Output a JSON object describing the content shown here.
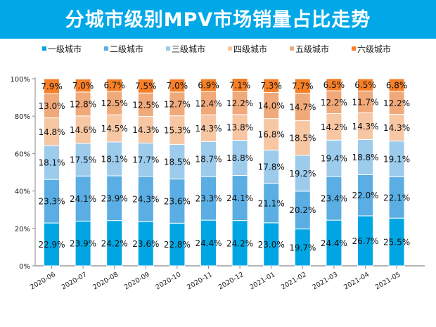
{
  "chart_data": {
    "type": "bar",
    "stacked": true,
    "title": "分城市级别MPV市场销量占比走势",
    "categories": [
      "2020-06",
      "2020-07",
      "2020-08",
      "2020-09",
      "2020-10",
      "2020-11",
      "2020-12",
      "2021-01",
      "2021-02",
      "2021-03",
      "2021-04",
      "2021-05"
    ],
    "series": [
      {
        "name": "一级城市",
        "color": "#00a6e4",
        "values": [
          22.9,
          23.9,
          24.2,
          23.6,
          22.8,
          24.4,
          24.2,
          23.0,
          19.7,
          24.4,
          26.7,
          25.5
        ]
      },
      {
        "name": "二级城市",
        "color": "#5aaee3",
        "values": [
          23.3,
          24.1,
          23.9,
          24.3,
          23.6,
          23.3,
          24.1,
          21.1,
          20.2,
          23.4,
          22.0,
          22.1
        ]
      },
      {
        "name": "三级城市",
        "color": "#9ccbec",
        "values": [
          18.1,
          17.5,
          18.1,
          17.7,
          18.5,
          18.7,
          18.8,
          17.8,
          19.2,
          19.4,
          18.8,
          19.1
        ]
      },
      {
        "name": "四级城市",
        "color": "#f7c6a3",
        "values": [
          14.8,
          14.6,
          14.5,
          14.3,
          15.3,
          14.3,
          13.8,
          16.8,
          18.5,
          14.2,
          14.3,
          14.3
        ]
      },
      {
        "name": "五级城市",
        "color": "#f0a97a",
        "values": [
          13.0,
          12.8,
          12.5,
          12.5,
          12.7,
          12.4,
          12.2,
          14.0,
          14.7,
          12.2,
          11.7,
          12.2
        ]
      },
      {
        "name": "六级城市",
        "color": "#f77f27",
        "values": [
          7.9,
          7.0,
          6.7,
          7.5,
          7.0,
          6.9,
          7.1,
          7.3,
          7.7,
          6.5,
          6.5,
          6.8
        ]
      }
    ],
    "yticks": [
      "0%",
      "20%",
      "40%",
      "60%",
      "80%",
      "100%"
    ],
    "ylim": [
      0,
      100
    ],
    "legend": "top",
    "grid": false
  }
}
